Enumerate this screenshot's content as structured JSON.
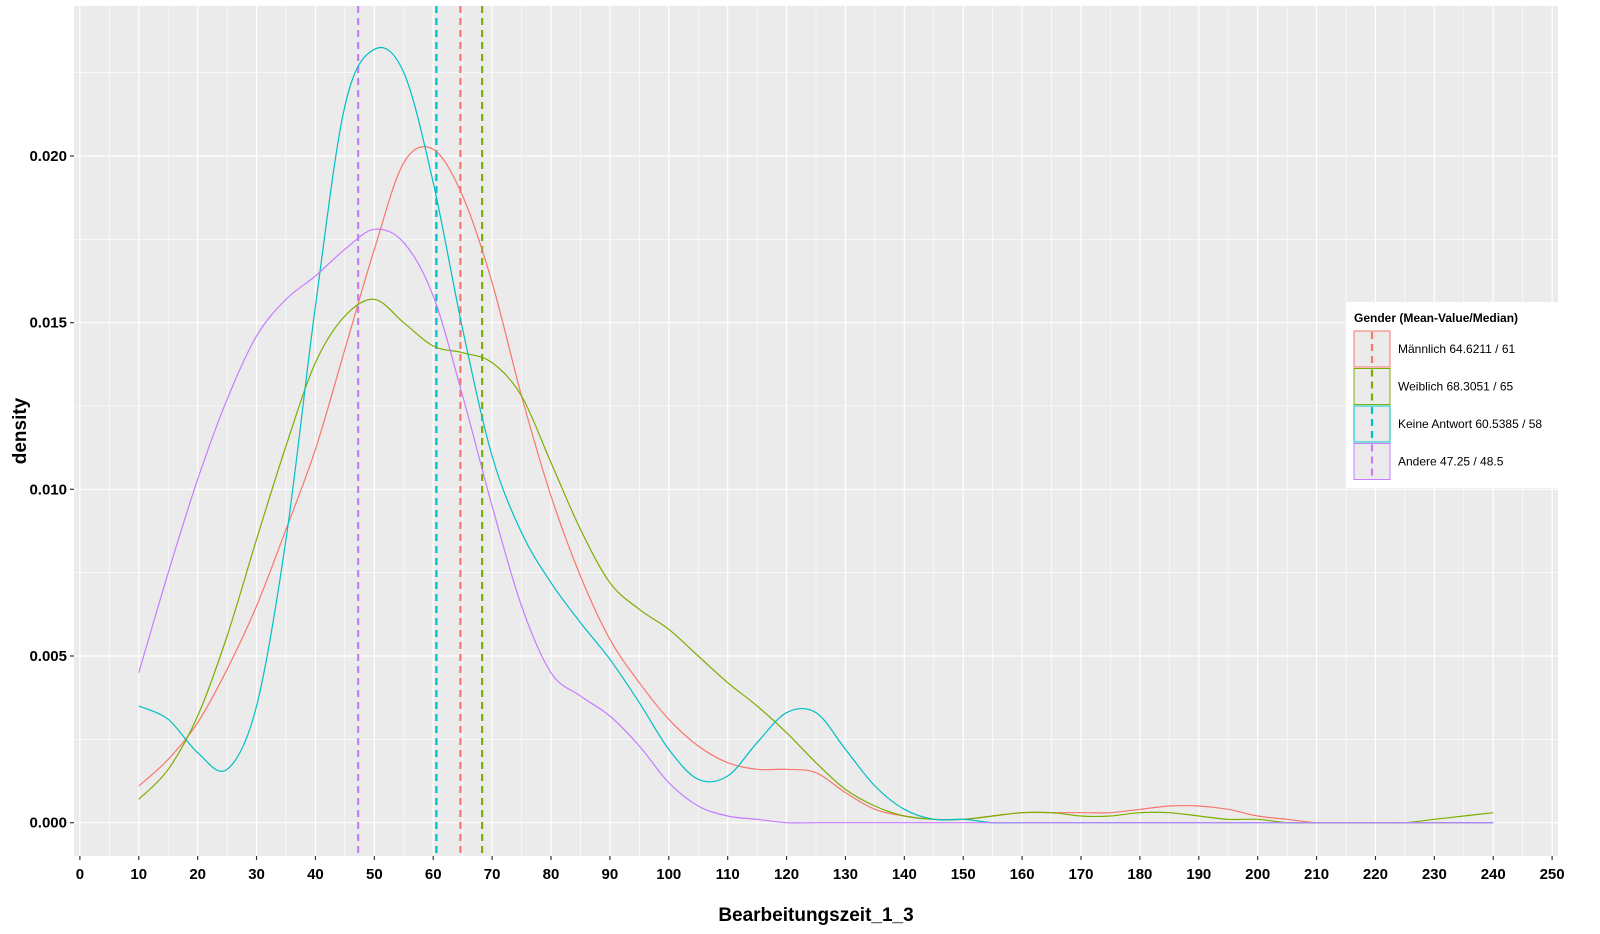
{
  "chart_data": {
    "type": "line",
    "subtype": "density",
    "title": "",
    "xlabel": "Bearbeitungszeit_1_3",
    "ylabel": "density",
    "xlim": [
      -1,
      251
    ],
    "ylim": [
      -0.001,
      0.0245
    ],
    "xticks": [
      0,
      10,
      20,
      30,
      40,
      50,
      60,
      70,
      80,
      90,
      100,
      110,
      120,
      130,
      140,
      150,
      160,
      170,
      180,
      190,
      200,
      210,
      220,
      230,
      240,
      250
    ],
    "yticks": [
      0.0,
      0.005,
      0.01,
      0.015,
      0.02
    ],
    "ytick_labels": [
      "0.000",
      "0.005",
      "0.010",
      "0.015",
      "0.020"
    ],
    "grid": true,
    "background": "#EBEBEB",
    "legend": {
      "title": "Gender (Mean-Value/Median)",
      "position": "right",
      "entries": [
        "Männlich 64.6211 / 61",
        "Weiblich 68.3051 / 65",
        "Keine Antwort 60.5385 / 58",
        "Andere 47.25 / 48.5"
      ]
    },
    "series": [
      {
        "name": "Männlich",
        "color": "#F8766D",
        "mean": 64.6211,
        "median": 61,
        "x": [
          10,
          15,
          20,
          25,
          30,
          35,
          40,
          45,
          50,
          55,
          60,
          65,
          70,
          75,
          80,
          85,
          90,
          95,
          100,
          105,
          110,
          115,
          120,
          125,
          130,
          135,
          140,
          145,
          150,
          155,
          160,
          165,
          170,
          175,
          180,
          185,
          190,
          195,
          200,
          205,
          210,
          215,
          220,
          225,
          230,
          235,
          240
        ],
        "y": [
          0.0011,
          0.0019,
          0.003,
          0.0046,
          0.0065,
          0.0088,
          0.0112,
          0.0142,
          0.0172,
          0.0198,
          0.0202,
          0.0188,
          0.0162,
          0.0128,
          0.0098,
          0.0074,
          0.0055,
          0.0042,
          0.0031,
          0.0023,
          0.0018,
          0.0016,
          0.0016,
          0.0015,
          0.0009,
          0.0004,
          0.0002,
          0.0001,
          0.0001,
          0.0002,
          0.0003,
          0.0003,
          0.0003,
          0.0003,
          0.0004,
          0.0005,
          0.0005,
          0.0004,
          0.0002,
          0.0001,
          0.0,
          0.0,
          0.0,
          0.0,
          0.0,
          0.0,
          0.0
        ]
      },
      {
        "name": "Weiblich",
        "color": "#7CAE00",
        "mean": 68.3051,
        "median": 65,
        "x": [
          10,
          15,
          20,
          25,
          30,
          35,
          40,
          45,
          50,
          55,
          60,
          65,
          70,
          75,
          80,
          85,
          90,
          95,
          100,
          105,
          110,
          115,
          120,
          125,
          130,
          135,
          140,
          145,
          150,
          155,
          160,
          165,
          170,
          175,
          180,
          185,
          190,
          195,
          200,
          205,
          210,
          215,
          220,
          225,
          230,
          235,
          240
        ],
        "y": [
          0.0007,
          0.0016,
          0.0032,
          0.0056,
          0.0085,
          0.0113,
          0.0138,
          0.0152,
          0.0157,
          0.015,
          0.0143,
          0.0141,
          0.0138,
          0.0128,
          0.0108,
          0.0088,
          0.0072,
          0.0064,
          0.0058,
          0.005,
          0.0042,
          0.0035,
          0.0027,
          0.0018,
          0.001,
          0.0005,
          0.0002,
          0.0001,
          0.0001,
          0.0002,
          0.0003,
          0.0003,
          0.0002,
          0.0002,
          0.0003,
          0.0003,
          0.0002,
          0.0001,
          0.0001,
          0.0,
          0.0,
          0.0,
          0.0,
          0.0,
          0.0001,
          0.0002,
          0.0003
        ]
      },
      {
        "name": "Keine Antwort",
        "color": "#00BFC4",
        "mean": 60.5385,
        "median": 58,
        "x": [
          10,
          15,
          20,
          25,
          30,
          35,
          40,
          45,
          50,
          55,
          60,
          65,
          70,
          75,
          80,
          85,
          90,
          95,
          100,
          105,
          110,
          115,
          120,
          125,
          130,
          135,
          140,
          145,
          150,
          155,
          160,
          165,
          170,
          175,
          180,
          185,
          190,
          195,
          200,
          205,
          210,
          215,
          220,
          225,
          230,
          235,
          240
        ],
        "y": [
          0.0035,
          0.0031,
          0.0021,
          0.0016,
          0.0035,
          0.0085,
          0.0155,
          0.0215,
          0.0232,
          0.0225,
          0.0192,
          0.0148,
          0.011,
          0.0087,
          0.0072,
          0.006,
          0.0049,
          0.0036,
          0.0022,
          0.0013,
          0.0014,
          0.0024,
          0.0033,
          0.0033,
          0.0022,
          0.0011,
          0.0004,
          0.0001,
          0.0001,
          0.0,
          0.0,
          0.0,
          0.0,
          0.0,
          0.0,
          0.0,
          0.0,
          0.0,
          0.0,
          0.0,
          0.0,
          0.0,
          0.0,
          0.0,
          0.0,
          0.0,
          0.0
        ]
      },
      {
        "name": "Andere",
        "color": "#C77CFF",
        "mean": 47.25,
        "median": 48.5,
        "x": [
          10,
          15,
          20,
          25,
          30,
          35,
          40,
          45,
          50,
          55,
          60,
          65,
          70,
          75,
          80,
          85,
          90,
          95,
          100,
          105,
          110,
          115,
          120,
          125,
          130,
          135,
          140,
          145,
          150,
          155,
          160,
          165,
          170,
          175,
          180,
          185,
          190,
          195,
          200,
          205,
          210,
          215,
          220,
          225,
          230,
          235,
          240
        ],
        "y": [
          0.0045,
          0.0075,
          0.0103,
          0.0127,
          0.0146,
          0.0157,
          0.0164,
          0.0172,
          0.0178,
          0.0174,
          0.0158,
          0.0128,
          0.0095,
          0.0065,
          0.0045,
          0.0038,
          0.0032,
          0.0023,
          0.0012,
          0.0005,
          0.0002,
          0.0001,
          0.0,
          0.0,
          0.0,
          0.0,
          0.0,
          0.0,
          0.0,
          0.0,
          0.0,
          0.0,
          0.0,
          0.0,
          0.0,
          0.0,
          0.0,
          0.0,
          0.0,
          0.0,
          0.0,
          0.0,
          0.0,
          0.0,
          0.0,
          0.0,
          0.0
        ]
      }
    ]
  }
}
